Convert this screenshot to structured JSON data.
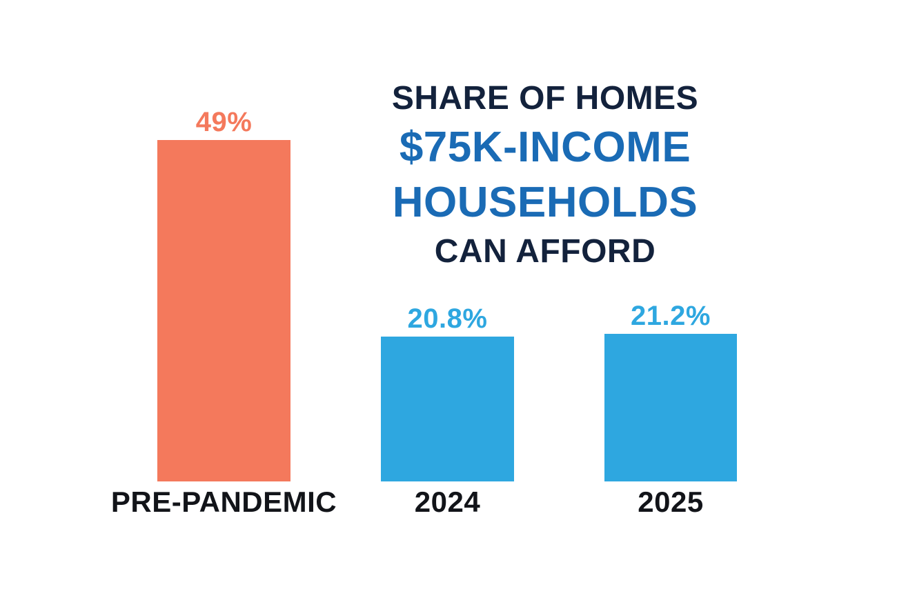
{
  "title": {
    "line1": "SHARE OF HOMES",
    "line2": "$75K-INCOME",
    "line3": "HOUSEHOLDS",
    "line4": "CAN AFFORD"
  },
  "colors": {
    "coral": "#F4795C",
    "bar_blue": "#2EA7E0",
    "title_navy": "#13223C",
    "title_blue": "#1A6BB5",
    "category_label_dark": "#121419",
    "background": "#FFFFFF"
  },
  "chart_data": {
    "type": "bar",
    "categories": [
      "PRE-PANDEMIC",
      "2024",
      "2025"
    ],
    "values": [
      49,
      20.8,
      21.2
    ],
    "value_labels": [
      "49%",
      "20.8%",
      "21.2%"
    ],
    "bar_colors": [
      "#F4795C",
      "#2EA7E0",
      "#2EA7E0"
    ],
    "value_label_colors": [
      "#F4795C",
      "#2EA7E0",
      "#2EA7E0"
    ],
    "title": "SHARE OF HOMES $75K-INCOME HOUSEHOLDS CAN AFFORD",
    "xlabel": "",
    "ylabel": "",
    "ylim": [
      0,
      52
    ],
    "grid": false,
    "legend": null,
    "value_labels_position": "above-bars",
    "category_labels_position": "below-bars"
  }
}
